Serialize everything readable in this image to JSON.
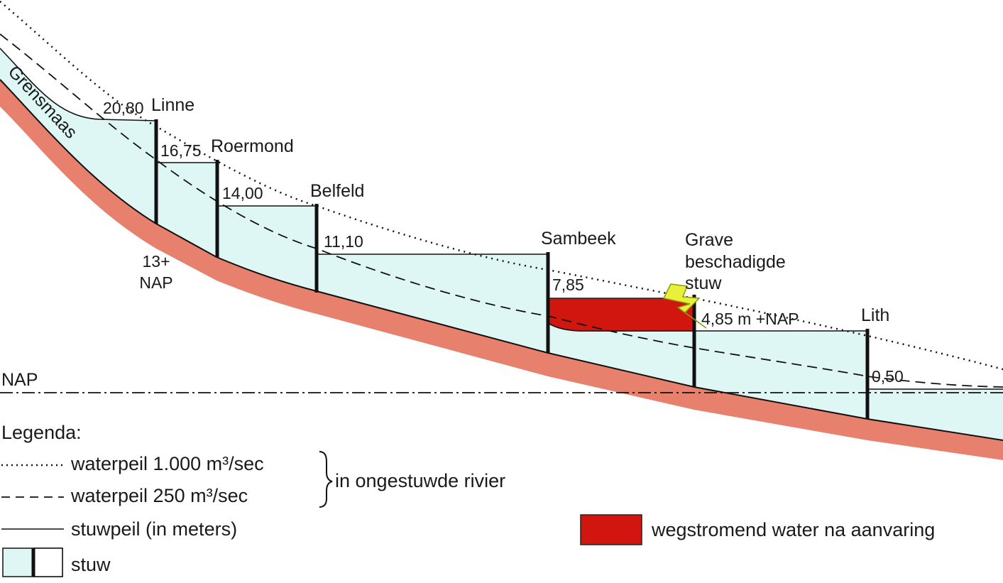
{
  "river_label": "Grensmaas",
  "reference": {
    "label": "NAP",
    "below_linne": [
      "13+",
      "NAP"
    ]
  },
  "weirs": [
    {
      "name": "Linne",
      "upstream_level": "20,80"
    },
    {
      "name": "Roermond",
      "upstream_level": "16,75"
    },
    {
      "name": "Belfeld",
      "upstream_level": "14,00"
    },
    {
      "name": "Sambeek",
      "upstream_level": "11,10"
    },
    {
      "name": "Grave",
      "note": [
        "beschadigde",
        "stuw"
      ],
      "upstream_level": "7,85"
    },
    {
      "name": "Lith",
      "upstream_level": "4,85 m +NAP"
    }
  ],
  "downstream_level": "0,50",
  "legend": {
    "title": "Legenda:",
    "items": [
      "waterpeil 1.000 m³/sec",
      "waterpeil 250 m³/sec",
      "stuwpeil (in meters)",
      "stuw"
    ],
    "group": "in ongestuwde rivier",
    "flow": "wegstromend water na aanvaring"
  }
}
